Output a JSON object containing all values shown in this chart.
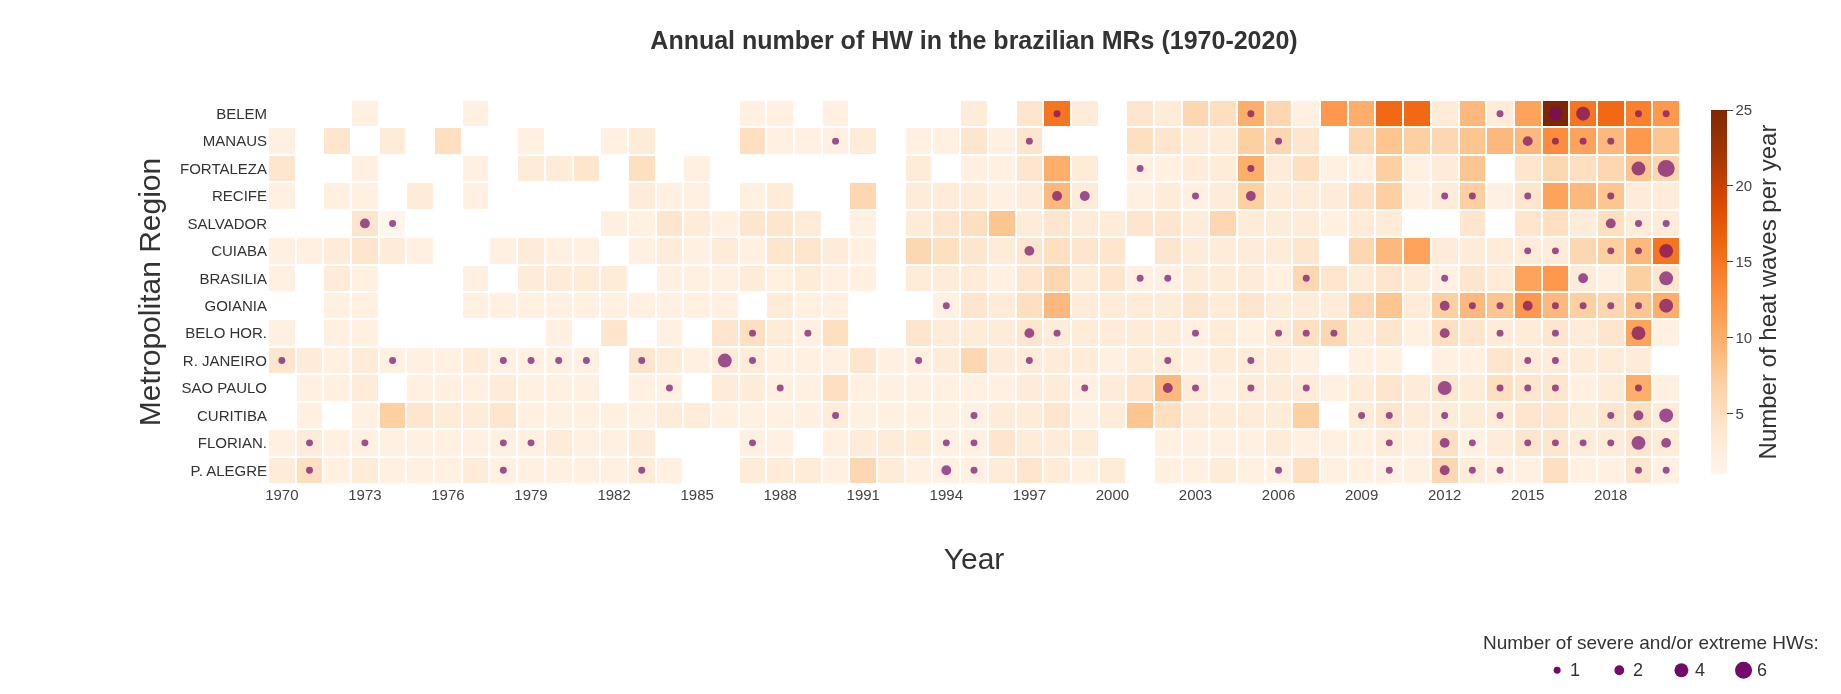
{
  "chart_data": {
    "type": "heatmap",
    "title": "Annual number of HW in the brazilian MRs (1970-2020)",
    "xlabel": "Year",
    "ylabel": "Metropolitan Region",
    "clabel": "Number of heat waves per year",
    "legend_title": "Number of severe and/or extreme HWs:",
    "x": [
      1970,
      1971,
      1972,
      1973,
      1974,
      1975,
      1976,
      1977,
      1978,
      1979,
      1980,
      1981,
      1982,
      1983,
      1984,
      1985,
      1986,
      1987,
      1988,
      1989,
      1990,
      1991,
      1992,
      1993,
      1994,
      1995,
      1996,
      1997,
      1998,
      1999,
      2000,
      2001,
      2002,
      2003,
      2004,
      2005,
      2006,
      2007,
      2008,
      2009,
      2010,
      2011,
      2012,
      2013,
      2014,
      2015,
      2016,
      2017,
      2018,
      2019,
      2020
    ],
    "xlim": [
      1969.5,
      2020.5
    ],
    "xticks": [
      1970,
      1973,
      1976,
      1979,
      1982,
      1985,
      1988,
      1991,
      1994,
      1997,
      2000,
      2003,
      2006,
      2009,
      2012,
      2015,
      2018
    ],
    "y_categories": [
      "BELEM",
      "MANAUS",
      "FORTALEZA",
      "RECIFE",
      "SALVADOR",
      "CUIABA",
      "BRASILIA",
      "GOIANIA",
      "BELO HOR.",
      "R. JANEIRO",
      "SAO PAULO",
      "CURITIBA",
      "FLORIAN.",
      "P. ALEGRE"
    ],
    "cells": [
      [
        null,
        null,
        null,
        2,
        null,
        null,
        null,
        2,
        null,
        null,
        null,
        null,
        null,
        null,
        null,
        null,
        null,
        2,
        2,
        null,
        2,
        null,
        null,
        null,
        null,
        3,
        null,
        4,
        15,
        3,
        null,
        4,
        3,
        6,
        5,
        10,
        6,
        2,
        12,
        10,
        16,
        16,
        3,
        9,
        3,
        11,
        25,
        15,
        16,
        14,
        12
      ],
      [
        2,
        null,
        4,
        null,
        3,
        null,
        5,
        null,
        null,
        2,
        null,
        null,
        2,
        3,
        null,
        null,
        null,
        5,
        2,
        2,
        2,
        3,
        null,
        2,
        2,
        4,
        2,
        4,
        null,
        null,
        null,
        5,
        4,
        3,
        3,
        7,
        6,
        4,
        null,
        6,
        8,
        7,
        6,
        8,
        9,
        9,
        13,
        11,
        9,
        12,
        8
      ],
      [
        4,
        null,
        null,
        2,
        null,
        null,
        null,
        2,
        null,
        3,
        3,
        4,
        null,
        5,
        null,
        2,
        null,
        null,
        null,
        null,
        null,
        null,
        null,
        3,
        null,
        2,
        2,
        4,
        10,
        3,
        null,
        2,
        2,
        3,
        3,
        10,
        3,
        5,
        2,
        2,
        7,
        2,
        3,
        8,
        null,
        4,
        6,
        5,
        6,
        8,
        6
      ],
      [
        2,
        null,
        2,
        2,
        null,
        3,
        null,
        2,
        null,
        null,
        null,
        null,
        null,
        3,
        2,
        2,
        null,
        2,
        3,
        null,
        null,
        6,
        null,
        3,
        3,
        3,
        2,
        3,
        9,
        3,
        null,
        2,
        3,
        2,
        3,
        7,
        3,
        3,
        3,
        5,
        7,
        2,
        3,
        7,
        2,
        4,
        11,
        9,
        8,
        3,
        3
      ],
      [
        null,
        null,
        null,
        4,
        1,
        null,
        null,
        null,
        null,
        null,
        null,
        null,
        2,
        2,
        4,
        3,
        2,
        4,
        4,
        3,
        null,
        2,
        null,
        3,
        4,
        5,
        8,
        3,
        4,
        3,
        3,
        4,
        4,
        3,
        6,
        3,
        3,
        3,
        2,
        3,
        3,
        null,
        null,
        4,
        null,
        4,
        5,
        3,
        5,
        3,
        3
      ],
      [
        2,
        2,
        3,
        4,
        3,
        2,
        null,
        null,
        2,
        3,
        2,
        2,
        null,
        2,
        3,
        2,
        3,
        2,
        4,
        4,
        3,
        2,
        null,
        6,
        5,
        4,
        3,
        4,
        5,
        4,
        4,
        null,
        4,
        3,
        3,
        3,
        3,
        4,
        null,
        6,
        9,
        11,
        3,
        3,
        3,
        3,
        3,
        6,
        7,
        9,
        15
      ],
      [
        2,
        null,
        3,
        2,
        null,
        null,
        null,
        2,
        null,
        3,
        3,
        3,
        3,
        null,
        2,
        2,
        2,
        3,
        2,
        3,
        2,
        2,
        null,
        3,
        3,
        3,
        2,
        4,
        6,
        3,
        4,
        2,
        2,
        3,
        3,
        3,
        2,
        6,
        4,
        3,
        4,
        3,
        2,
        4,
        3,
        11,
        12,
        3,
        2,
        7,
        4
      ],
      [
        null,
        null,
        2,
        2,
        null,
        null,
        null,
        2,
        2,
        2,
        2,
        2,
        2,
        2,
        2,
        2,
        2,
        null,
        3,
        2,
        2,
        null,
        null,
        null,
        2,
        4,
        3,
        5,
        9,
        3,
        3,
        3,
        3,
        4,
        3,
        4,
        3,
        3,
        3,
        6,
        8,
        3,
        7,
        9,
        8,
        12,
        9,
        7,
        6,
        8,
        10
      ],
      [
        2,
        null,
        2,
        2,
        null,
        null,
        null,
        null,
        null,
        null,
        2,
        null,
        4,
        null,
        2,
        null,
        4,
        5,
        3,
        2,
        5,
        null,
        null,
        4,
        3,
        3,
        3,
        4,
        3,
        3,
        3,
        3,
        3,
        2,
        3,
        2,
        3,
        5,
        6,
        3,
        4,
        2,
        5,
        4,
        3,
        3,
        4,
        3,
        4,
        11,
        2
      ],
      [
        4,
        3,
        2,
        3,
        2,
        2,
        2,
        3,
        2,
        2,
        2,
        2,
        null,
        4,
        3,
        2,
        3,
        3,
        2,
        2,
        2,
        4,
        2,
        2,
        3,
        6,
        3,
        3,
        3,
        3,
        2,
        3,
        3,
        2,
        3,
        3,
        3,
        2,
        null,
        2,
        2,
        null,
        2,
        2,
        4,
        3,
        3,
        3,
        3,
        3,
        null
      ],
      [
        null,
        2,
        2,
        3,
        null,
        2,
        2,
        2,
        3,
        2,
        2,
        2,
        null,
        2,
        2,
        null,
        3,
        3,
        2,
        2,
        5,
        2,
        2,
        2,
        2,
        2,
        2,
        3,
        3,
        2,
        3,
        4,
        9,
        3,
        2,
        3,
        3,
        3,
        2,
        3,
        4,
        3,
        4,
        3,
        5,
        4,
        4,
        2,
        3,
        10,
        2
      ],
      [
        null,
        2,
        null,
        2,
        7,
        4,
        3,
        3,
        4,
        2,
        2,
        2,
        2,
        2,
        3,
        3,
        2,
        2,
        2,
        2,
        3,
        2,
        2,
        2,
        2,
        2,
        3,
        3,
        4,
        2,
        3,
        8,
        5,
        3,
        3,
        3,
        3,
        7,
        null,
        3,
        4,
        3,
        3,
        3,
        3,
        4,
        4,
        3,
        4,
        5,
        3
      ],
      [
        2,
        3,
        2,
        2,
        2,
        2,
        2,
        2,
        2,
        2,
        3,
        2,
        2,
        3,
        null,
        null,
        null,
        2,
        2,
        null,
        2,
        3,
        3,
        3,
        2,
        2,
        4,
        3,
        3,
        3,
        null,
        null,
        2,
        2,
        2,
        2,
        3,
        2,
        2,
        2,
        3,
        2,
        5,
        2,
        3,
        4,
        4,
        3,
        3,
        4,
        3
      ],
      [
        3,
        5,
        2,
        3,
        2,
        2,
        2,
        3,
        2,
        2,
        2,
        2,
        2,
        3,
        2,
        null,
        null,
        3,
        3,
        3,
        2,
        6,
        3,
        2,
        2,
        2,
        3,
        4,
        3,
        2,
        3,
        null,
        2,
        2,
        3,
        2,
        2,
        5,
        2,
        2,
        2,
        2,
        6,
        3,
        2,
        2,
        5,
        2,
        2,
        4,
        2
      ]
    ],
    "clim": [
      1,
      25
    ],
    "cticks": [
      5,
      10,
      15,
      20,
      25
    ],
    "series": [
      {
        "type": "bubble",
        "color": "#730a6b",
        "x": [
          1998,
          2005,
          2014,
          2016,
          2017,
          2019,
          2020,
          1990,
          1997,
          2006,
          2015,
          2016,
          2017,
          2018,
          2001,
          2005,
          2019,
          2020,
          1998,
          1999,
          2003,
          2005,
          2012,
          2013,
          2015,
          2018,
          1973,
          1974,
          2018,
          2019,
          2020,
          1997,
          2015,
          2016,
          2018,
          2019,
          2020,
          2001,
          2002,
          2007,
          2012,
          2017,
          2020,
          1994,
          2012,
          2013,
          2014,
          2015,
          2016,
          2017,
          2018,
          2019,
          2020,
          1987,
          1989,
          1997,
          1998,
          2003,
          2006,
          2007,
          2008,
          2012,
          2014,
          2016,
          2019,
          1970,
          1974,
          1978,
          1979,
          1980,
          1981,
          1983,
          1986,
          1987,
          1993,
          1997,
          2002,
          2005,
          2015,
          2016,
          1984,
          1988,
          1999,
          2002,
          2003,
          2005,
          2007,
          2012,
          2014,
          2015,
          2016,
          2019,
          1990,
          1995,
          2009,
          2010,
          2012,
          2014,
          2018,
          2019,
          2020,
          1971,
          1973,
          1978,
          1979,
          1987,
          1994,
          1995,
          2010,
          2012,
          2013,
          2015,
          2016,
          2017,
          2018,
          2019,
          2020,
          1971,
          1978,
          1983,
          1994,
          1995,
          2006,
          2010,
          2012,
          2013,
          2014,
          2019,
          2020
        ],
        "values": [
          0,
          0,
          0,
          0,
          0,
          0,
          0,
          1,
          1,
          1,
          1,
          1,
          1,
          1,
          2,
          2,
          2,
          2,
          3,
          3,
          3,
          3,
          3,
          3,
          3,
          3,
          4,
          4,
          4,
          4,
          4,
          5,
          5,
          5,
          5,
          5,
          5,
          6,
          6,
          6,
          6,
          6,
          6,
          7,
          7,
          7,
          7,
          7,
          7,
          7,
          7,
          7,
          7,
          8,
          8,
          8,
          8,
          8,
          8,
          8,
          8,
          8,
          8,
          8,
          8,
          9,
          9,
          9,
          9,
          9,
          9,
          9,
          9,
          9,
          9,
          9,
          9,
          9,
          9,
          9,
          10,
          10,
          10,
          10,
          10,
          10,
          10,
          10,
          10,
          10,
          10,
          10,
          11,
          11,
          11,
          11,
          11,
          11,
          11,
          11,
          11,
          12,
          12,
          12,
          12,
          12,
          12,
          12,
          12,
          12,
          12,
          12,
          12,
          12,
          12,
          12,
          12,
          13,
          13,
          13,
          13,
          13,
          13,
          13,
          13,
          13,
          13,
          13,
          13
        ],
        "sizes": [
          1,
          1,
          1,
          4,
          4,
          1,
          1,
          1,
          1,
          1,
          2,
          1,
          1,
          1,
          1,
          1,
          4,
          6,
          2,
          2,
          1,
          2,
          1,
          1,
          1,
          1,
          2,
          1,
          2,
          1,
          1,
          2,
          1,
          1,
          1,
          1,
          4,
          1,
          1,
          1,
          1,
          2,
          4,
          1,
          2,
          1,
          1,
          2,
          1,
          1,
          1,
          1,
          4,
          1,
          1,
          2,
          1,
          1,
          1,
          1,
          1,
          2,
          1,
          1,
          4,
          1,
          1,
          1,
          1,
          1,
          1,
          1,
          4,
          1,
          1,
          1,
          1,
          1,
          1,
          1,
          1,
          1,
          1,
          2,
          1,
          1,
          1,
          4,
          1,
          1,
          1,
          1,
          1,
          1,
          1,
          1,
          1,
          1,
          1,
          2,
          4,
          1,
          1,
          1,
          1,
          1,
          1,
          1,
          1,
          2,
          1,
          1,
          1,
          1,
          1,
          4,
          2,
          1,
          1,
          1,
          2,
          1,
          1,
          1,
          2,
          1,
          1,
          1,
          1
        ]
      }
    ],
    "size_legend": [
      1,
      2,
      4,
      6
    ]
  }
}
